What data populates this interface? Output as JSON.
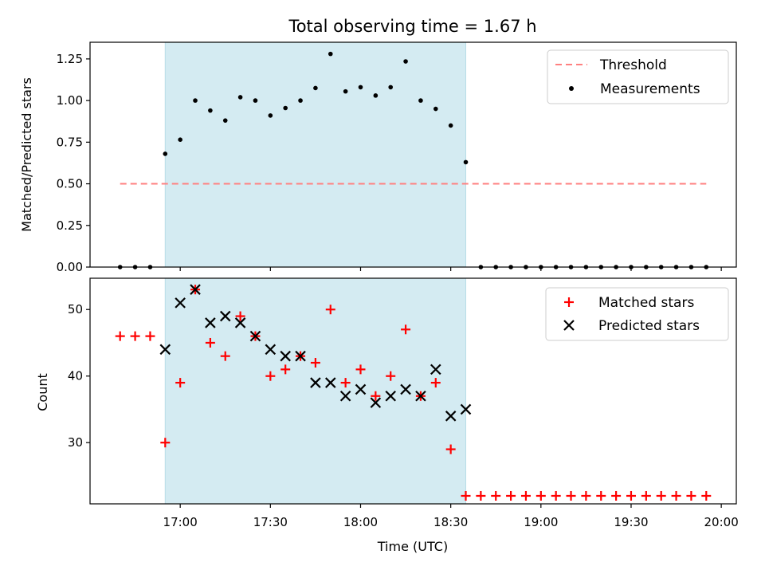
{
  "chart_data": {
    "title": "Total observing time = 1.67 h",
    "xlabel": "Time (UTC)",
    "x_ticks": [
      "17:00",
      "17:30",
      "18:00",
      "18:30",
      "19:00",
      "19:30",
      "20:00"
    ],
    "x_tick_minutes": [
      1020,
      1050,
      1080,
      1110,
      1140,
      1170,
      1200
    ],
    "xlim_minutes": [
      990,
      1205
    ],
    "observing_window_minutes": [
      1015,
      1115
    ],
    "shading_color": "#d4ebf2",
    "panels": [
      {
        "type": "scatter",
        "ylabel": "Matched/Predicted stars",
        "ylim": [
          0,
          1.35
        ],
        "y_ticks": [
          "0.00",
          "0.25",
          "0.50",
          "0.75",
          "1.00",
          "1.25"
        ],
        "y_tick_values": [
          0,
          0.25,
          0.5,
          0.75,
          1.0,
          1.25
        ],
        "legend_position": "upper right",
        "threshold": {
          "name": "Threshold",
          "value": 0.5,
          "x_range_minutes": [
            1000,
            1195
          ],
          "color": "#ff8080",
          "style": "dashed"
        },
        "series": [
          {
            "name": "Measurements",
            "marker": "dot",
            "color": "#000000",
            "x_minutes": [
              1000,
              1005,
              1010,
              1015,
              1020,
              1025,
              1030,
              1035,
              1040,
              1045,
              1050,
              1055,
              1060,
              1065,
              1070,
              1075,
              1080,
              1085,
              1090,
              1095,
              1100,
              1105,
              1110,
              1115,
              1120,
              1125,
              1130,
              1135,
              1140,
              1145,
              1150,
              1155,
              1160,
              1165,
              1170,
              1175,
              1180,
              1185,
              1190,
              1195
            ],
            "y": [
              0,
              0,
              0,
              0.68,
              0.765,
              1.0,
              0.94,
              0.88,
              1.02,
              1.0,
              0.91,
              0.955,
              1.0,
              1.075,
              1.28,
              1.055,
              1.08,
              1.03,
              1.08,
              1.235,
              1.0,
              0.95,
              0.85,
              0.63,
              0,
              0,
              0,
              0,
              0,
              0,
              0,
              0,
              0,
              0,
              0,
              0,
              0,
              0,
              0,
              0
            ]
          }
        ]
      },
      {
        "type": "scatter",
        "ylabel": "Count",
        "ylim": [
          20.8,
          54.7
        ],
        "y_ticks": [
          "30",
          "40",
          "50"
        ],
        "y_tick_values": [
          30,
          40,
          50
        ],
        "legend_position": "upper right",
        "series": [
          {
            "name": "Matched stars",
            "marker": "plus",
            "color": "#ff0000",
            "x_minutes": [
              1000,
              1005,
              1010,
              1015,
              1020,
              1025,
              1030,
              1035,
              1040,
              1045,
              1050,
              1055,
              1060,
              1065,
              1070,
              1075,
              1080,
              1085,
              1090,
              1095,
              1100,
              1105,
              1110,
              1115,
              1120,
              1125,
              1130,
              1135,
              1140,
              1145,
              1150,
              1155,
              1160,
              1165,
              1170,
              1175,
              1180,
              1185,
              1190,
              1195
            ],
            "y": [
              46,
              46,
              46,
              30,
              39,
              53,
              45,
              43,
              49,
              46,
              40,
              41,
              43,
              42,
              50,
              39,
              41,
              37,
              40,
              47,
              37,
              39,
              29,
              22,
              22,
              22,
              22,
              22,
              22,
              22,
              22,
              22,
              22,
              22,
              22,
              22,
              22,
              22,
              22,
              22
            ]
          },
          {
            "name": "Predicted stars",
            "marker": "x",
            "color": "#000000",
            "x_minutes": [
              1015,
              1020,
              1025,
              1030,
              1035,
              1040,
              1045,
              1050,
              1055,
              1060,
              1065,
              1070,
              1075,
              1080,
              1085,
              1090,
              1095,
              1100,
              1105,
              1110,
              1115
            ],
            "y": [
              44,
              51,
              53,
              48,
              49,
              48,
              46,
              44,
              43,
              43,
              39,
              39,
              37,
              38,
              36,
              37,
              38,
              37,
              41,
              34,
              35
            ]
          }
        ]
      }
    ]
  }
}
